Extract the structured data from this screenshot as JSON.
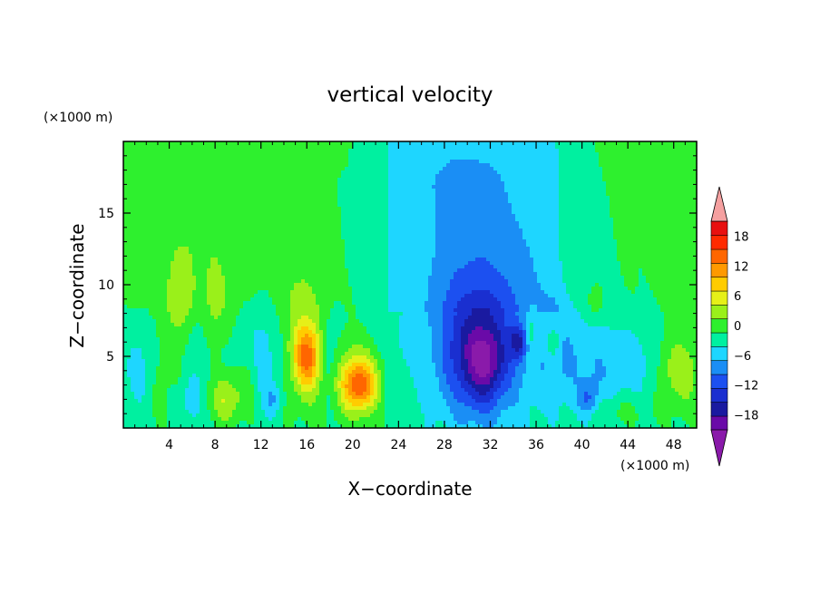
{
  "chart_data": {
    "type": "heatmap",
    "title": "vertical velocity",
    "xlabel": "X−coordinate",
    "ylabel": "Z−coordinate",
    "x_unit": "(×1000 m)",
    "y_unit": "(×1000 m)",
    "xlim": [
      0,
      50
    ],
    "ylim": [
      0,
      20
    ],
    "x_ticks": [
      "4",
      "8",
      "12",
      "16",
      "20",
      "24",
      "28",
      "32",
      "36",
      "40",
      "44",
      "48"
    ],
    "y_ticks": [
      "5",
      "10",
      "15"
    ],
    "colorbar": {
      "tick_labels": [
        "18",
        "12",
        "6",
        "0",
        "−6",
        "−12",
        "−18"
      ],
      "levels": [
        -21,
        -18,
        -15,
        -12,
        -9,
        -6,
        -3,
        0,
        3,
        6,
        9,
        12,
        15,
        18,
        21
      ],
      "colors": [
        "#6a0aa8",
        "#1a1aa0",
        "#1a2fd0",
        "#1c50f0",
        "#1a8ef5",
        "#1ed6ff",
        "#00f0a0",
        "#2ef02e",
        "#9af01a",
        "#e6f018",
        "#ffcc00",
        "#ff9900",
        "#ff6600",
        "#ff2a00",
        "#e81010"
      ],
      "under_color": "#8a1aaa",
      "over_color": "#f5a0a0"
    },
    "features": [
      {
        "x": 6.5,
        "z": 7.5,
        "w": -4,
        "sx": 1.2,
        "sz": 3.0
      },
      {
        "x": 5.2,
        "z": 8.5,
        "w": 5,
        "sx": 0.9,
        "sz": 2.2
      },
      {
        "x": 7.8,
        "z": 8.0,
        "w": 4,
        "sx": 0.8,
        "sz": 2.2
      },
      {
        "x": 6.5,
        "z": 11.0,
        "w": 3,
        "sx": 2.5,
        "sz": 4.0
      },
      {
        "x": 9.0,
        "z": 2.0,
        "w": 7,
        "sx": 1.0,
        "sz": 1.2
      },
      {
        "x": 3.0,
        "z": 3.5,
        "w": 2,
        "sx": 1.2,
        "sz": 2.5
      },
      {
        "x": 1.5,
        "z": 4.0,
        "w": -4,
        "sx": 0.9,
        "sz": 2.0
      },
      {
        "x": 6.0,
        "z": 2.0,
        "w": -5,
        "sx": 0.5,
        "sz": 1.0
      },
      {
        "x": 13.0,
        "z": 2.0,
        "w": -5,
        "sx": 0.5,
        "sz": 0.8
      },
      {
        "x": 12.0,
        "z": 5.0,
        "w": -4,
        "sx": 1.2,
        "sz": 2.5
      },
      {
        "x": 11.0,
        "z": 3.5,
        "w": 3,
        "sx": 0.6,
        "sz": 2.0
      },
      {
        "x": 16.0,
        "z": 5.0,
        "w": 14,
        "sx": 0.8,
        "sz": 1.6
      },
      {
        "x": 15.5,
        "z": 7.0,
        "w": 4,
        "sx": 1.5,
        "sz": 4.0
      },
      {
        "x": 20.5,
        "z": 3.0,
        "w": 14,
        "sx": 1.0,
        "sz": 1.2
      },
      {
        "x": 20.8,
        "z": 3.5,
        "w": 6,
        "sx": 2.5,
        "sz": 2.2
      },
      {
        "x": 18.0,
        "z": 4.5,
        "w": -4,
        "sx": 0.6,
        "sz": 2.0
      },
      {
        "x": 23.5,
        "z": 4.0,
        "w": -3,
        "sx": 1.2,
        "sz": 2.5
      },
      {
        "x": 31.0,
        "z": 10.0,
        "w": -6,
        "sx": 5.0,
        "sz": 6.0
      },
      {
        "x": 31.0,
        "z": 5.0,
        "w": -13,
        "sx": 2.2,
        "sz": 3.0
      },
      {
        "x": 31.5,
        "z": 4.5,
        "w": -6,
        "sx": 1.0,
        "sz": 1.5
      },
      {
        "x": 34.5,
        "z": 6.0,
        "w": -10,
        "sx": 0.5,
        "sz": 0.8
      },
      {
        "x": 35.5,
        "z": 6.5,
        "w": 5,
        "sx": 0.5,
        "sz": 1.2
      },
      {
        "x": 37.5,
        "z": 6.0,
        "w": 5,
        "sx": 0.5,
        "sz": 1.0
      },
      {
        "x": 38.0,
        "z": 5.0,
        "w": -4,
        "sx": 1.5,
        "sz": 2.5
      },
      {
        "x": 40.5,
        "z": 2.0,
        "w": -6,
        "sx": 0.6,
        "sz": 0.8
      },
      {
        "x": 41.5,
        "z": 4.0,
        "w": -4,
        "sx": 1.5,
        "sz": 2.5
      },
      {
        "x": 43.0,
        "z": 1.2,
        "w": 3,
        "sx": 1.8,
        "sz": 0.8
      },
      {
        "x": 48.5,
        "z": 4.0,
        "w": 6,
        "sx": 1.5,
        "sz": 2.0
      },
      {
        "x": 45.0,
        "z": 4.5,
        "w": -3,
        "sx": 1.5,
        "sz": 2.0
      },
      {
        "x": 41.0,
        "z": 8.5,
        "w": 2.5,
        "sx": 0.6,
        "sz": 1.0
      },
      {
        "x": 25.0,
        "z": 10.0,
        "w": 1.5,
        "sx": 1.5,
        "sz": 3.0
      },
      {
        "x": 29.0,
        "z": 18.0,
        "w": -2,
        "sx": 4.0,
        "sz": 2.0
      }
    ]
  }
}
